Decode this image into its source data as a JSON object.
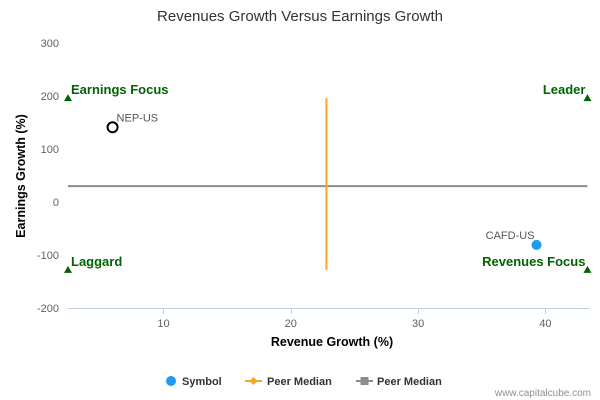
{
  "chart_data": {
    "type": "scatter",
    "title": "Revenues Growth Versus Earnings Growth",
    "xlabel": "Revenue Growth (%)",
    "ylabel": "Earnings Growth (%)",
    "xlim": [
      2.5,
      43.5
    ],
    "ylim": [
      -200,
      300
    ],
    "x_ticks": [
      10,
      20,
      30,
      40
    ],
    "y_ticks": [
      -200,
      -100,
      0,
      100,
      200,
      300
    ],
    "points": [
      {
        "label": "NEP-US",
        "x": 6.0,
        "y": 141,
        "style": "hollow"
      },
      {
        "label": "CAFD-US",
        "x": 39.3,
        "y": -81,
        "style": "filled"
      }
    ],
    "peer_median_x": 22.8,
    "peer_median_x_range": [
      -128,
      196
    ],
    "peer_median_y": 30,
    "quadrant_markers": [
      {
        "label": "Earnings Focus",
        "x": 2.5,
        "y": 196,
        "anchor": "start"
      },
      {
        "label": "Leader",
        "x": 43.3,
        "y": 196,
        "anchor": "end"
      },
      {
        "label": "Laggard",
        "x": 2.5,
        "y": -128,
        "anchor": "start"
      },
      {
        "label": "Revenues Focus",
        "x": 43.3,
        "y": -128,
        "anchor": "end"
      }
    ],
    "legend": [
      {
        "label": "Symbol",
        "kind": "dot"
      },
      {
        "label": "Peer Median",
        "kind": "diamond-line"
      },
      {
        "label": "Peer Median",
        "kind": "square-line"
      }
    ],
    "colors": {
      "symbol": "#1E9BF0",
      "peer_median_x": "#F5A623",
      "peer_median_y": "#8C8C8C",
      "quadrant": "#006400",
      "axis": "#C0D0E0",
      "title": "#333333",
      "tick": "#606060"
    },
    "watermark": "www.capitalcube.com"
  }
}
